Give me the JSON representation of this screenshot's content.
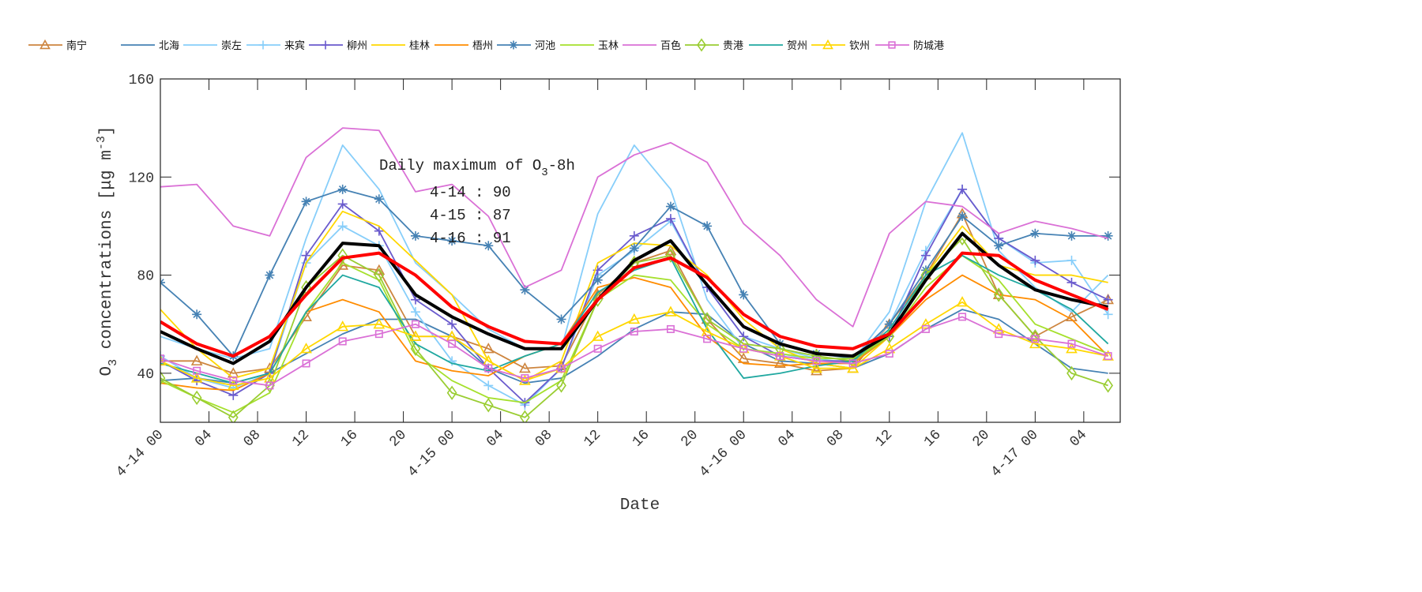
{
  "chart_data": {
    "type": "line",
    "xlabel": "Date",
    "ylabel": "O3 concentrations [μg m-3]",
    "ylabel_parts": {
      "pre": "O",
      "sub": "3",
      "mid": " concentrations [μg m",
      "sup": "-3",
      "post": "]"
    },
    "ylim": [
      20,
      160
    ],
    "xlim_hours": [
      0,
      79
    ],
    "y_ticks": [
      40,
      80,
      120,
      160
    ],
    "x_ticks": [
      {
        "hour": 0,
        "label": "4-14 00"
      },
      {
        "hour": 4,
        "label": "04"
      },
      {
        "hour": 8,
        "label": "08"
      },
      {
        "hour": 12,
        "label": "12"
      },
      {
        "hour": 16,
        "label": "16"
      },
      {
        "hour": 20,
        "label": "20"
      },
      {
        "hour": 24,
        "label": "4-15 00"
      },
      {
        "hour": 28,
        "label": "04"
      },
      {
        "hour": 32,
        "label": "08"
      },
      {
        "hour": 36,
        "label": "12"
      },
      {
        "hour": 40,
        "label": "16"
      },
      {
        "hour": 44,
        "label": "20"
      },
      {
        "hour": 48,
        "label": "4-16 00"
      },
      {
        "hour": 52,
        "label": "04"
      },
      {
        "hour": 56,
        "label": "08"
      },
      {
        "hour": 60,
        "label": "12"
      },
      {
        "hour": 64,
        "label": "16"
      },
      {
        "hour": 68,
        "label": "20"
      },
      {
        "hour": 72,
        "label": "4-17 00"
      },
      {
        "hour": 76,
        "label": "04"
      }
    ],
    "x_hours": [
      0,
      3,
      6,
      9,
      12,
      15,
      18,
      21,
      24,
      27,
      30,
      33,
      36,
      39,
      42,
      45,
      48,
      51,
      54,
      57,
      60,
      63,
      66,
      69,
      72,
      75,
      78
    ],
    "grid": false,
    "legend_position": "top",
    "series": [
      {
        "name": "南宁",
        "color": "#cd853f",
        "marker": "triangle",
        "values": [
          45,
          45,
          40,
          42,
          63,
          84,
          82,
          55,
          55,
          50,
          42,
          43,
          72,
          85,
          90,
          62,
          46,
          44,
          41,
          42,
          60,
          80,
          105,
          72,
          55,
          63,
          70
        ]
      },
      {
        "name": "北海",
        "color": "#4682b4",
        "marker": "none",
        "values": [
          37,
          38,
          36,
          40,
          48,
          56,
          62,
          62,
          55,
          42,
          36,
          38,
          47,
          58,
          65,
          64,
          52,
          45,
          44,
          42,
          48,
          58,
          66,
          62,
          52,
          42,
          40
        ]
      },
      {
        "name": "崇左",
        "color": "#87cefa",
        "marker": "none",
        "values": [
          55,
          50,
          46,
          50,
          95,
          133,
          115,
          85,
          72,
          58,
          50,
          50,
          105,
          133,
          115,
          70,
          50,
          48,
          45,
          45,
          65,
          110,
          138,
          90,
          75,
          65,
          80
        ]
      },
      {
        "name": "来宾",
        "color": "#87cefa",
        "marker": "plus",
        "values": [
          47,
          38,
          34,
          40,
          85,
          100,
          92,
          65,
          45,
          35,
          27,
          42,
          80,
          90,
          102,
          75,
          55,
          50,
          46,
          44,
          60,
          90,
          115,
          95,
          85,
          86,
          64
        ]
      },
      {
        "name": "柳州",
        "color": "#6a5acd",
        "marker": "plus",
        "values": [
          45,
          37,
          31,
          40,
          88,
          109,
          98,
          70,
          60,
          42,
          28,
          42,
          82,
          96,
          103,
          75,
          55,
          47,
          45,
          45,
          55,
          88,
          115,
          95,
          86,
          77,
          70
        ]
      },
      {
        "name": "桂林",
        "color": "#ffd700",
        "marker": "none",
        "values": [
          66,
          50,
          38,
          42,
          85,
          106,
          100,
          86,
          72,
          45,
          37,
          45,
          85,
          93,
          92,
          80,
          62,
          50,
          44,
          42,
          55,
          80,
          100,
          84,
          80,
          80,
          77
        ]
      },
      {
        "name": "梧州",
        "color": "#ff8c00",
        "marker": "none",
        "values": [
          36,
          34,
          33,
          40,
          65,
          70,
          65,
          45,
          41,
          39,
          47,
          52,
          75,
          79,
          75,
          55,
          44,
          43,
          44,
          44,
          55,
          70,
          80,
          72,
          70,
          62,
          47
        ]
      },
      {
        "name": "河池",
        "color": "#4682b4",
        "marker": "star",
        "values": [
          77,
          64,
          47,
          80,
          110,
          115,
          111,
          96,
          94,
          92,
          74,
          62,
          78,
          91,
          108,
          100,
          72,
          52,
          48,
          46,
          60,
          82,
          104,
          92,
          97,
          96,
          96
        ]
      },
      {
        "name": "玉林",
        "color": "#a5e02c",
        "marker": "none",
        "values": [
          37,
          30,
          24,
          32,
          65,
          85,
          78,
          48,
          37,
          30,
          28,
          37,
          70,
          80,
          78,
          60,
          50,
          48,
          46,
          46,
          55,
          75,
          88,
          78,
          60,
          54,
          48
        ]
      },
      {
        "name": "百色",
        "color": "#da70d6",
        "marker": "none",
        "values": [
          116,
          117,
          100,
          96,
          128,
          140,
          139,
          114,
          117,
          104,
          75,
          82,
          120,
          129,
          134,
          126,
          101,
          88,
          70,
          59,
          97,
          110,
          108,
          97,
          102,
          99,
          95
        ]
      },
      {
        "name": "贵港",
        "color": "#9acd32",
        "marker": "diamond",
        "values": [
          38,
          30,
          22,
          35,
          75,
          88,
          80,
          50,
          32,
          27,
          22,
          35,
          70,
          85,
          88,
          62,
          52,
          50,
          47,
          45,
          55,
          80,
          95,
          72,
          55,
          40,
          35
        ]
      },
      {
        "name": "贺州",
        "color": "#20a8a0",
        "marker": "none",
        "values": [
          44,
          40,
          36,
          40,
          65,
          80,
          75,
          52,
          44,
          41,
          47,
          52,
          73,
          82,
          87,
          58,
          38,
          40,
          43,
          45,
          58,
          80,
          88,
          80,
          74,
          66,
          52
        ]
      },
      {
        "name": "钦州",
        "color": "#ffd700",
        "marker": "triangle",
        "values": [
          45,
          38,
          35,
          38,
          50,
          59,
          60,
          55,
          55,
          45,
          37,
          42,
          55,
          62,
          65,
          57,
          50,
          47,
          42,
          42,
          50,
          60,
          69,
          58,
          52,
          50,
          47
        ]
      },
      {
        "name": "防城港",
        "color": "#da70d6",
        "marker": "square",
        "values": [
          46,
          41,
          37,
          35,
          44,
          53,
          56,
          60,
          52,
          42,
          38,
          42,
          50,
          57,
          58,
          54,
          50,
          47,
          45,
          44,
          48,
          58,
          63,
          56,
          54,
          52,
          47
        ]
      },
      {
        "color": "#000000",
        "marker": "none",
        "width": 4,
        "values": [
          57,
          50,
          44,
          53,
          75,
          93,
          92,
          72,
          63,
          56,
          50,
          50,
          70,
          86,
          94,
          76,
          59,
          52,
          48,
          47,
          56,
          78,
          97,
          84,
          74,
          70,
          67
        ]
      },
      {
        "color": "#ff0000",
        "marker": "none",
        "width": 4,
        "values": [
          61,
          52,
          47,
          55,
          72,
          87,
          89,
          80,
          67,
          59,
          53,
          52,
          70,
          83,
          87,
          79,
          64,
          55,
          51,
          50,
          56,
          72,
          89,
          88,
          78,
          72,
          66
        ]
      }
    ],
    "annotation": {
      "title_pre": "Daily maximum of O",
      "title_sub": "3",
      "title_post": "-8h",
      "lines": [
        "4-14 : 90",
        "4-15 : 87",
        "4-16 : 91"
      ]
    }
  }
}
